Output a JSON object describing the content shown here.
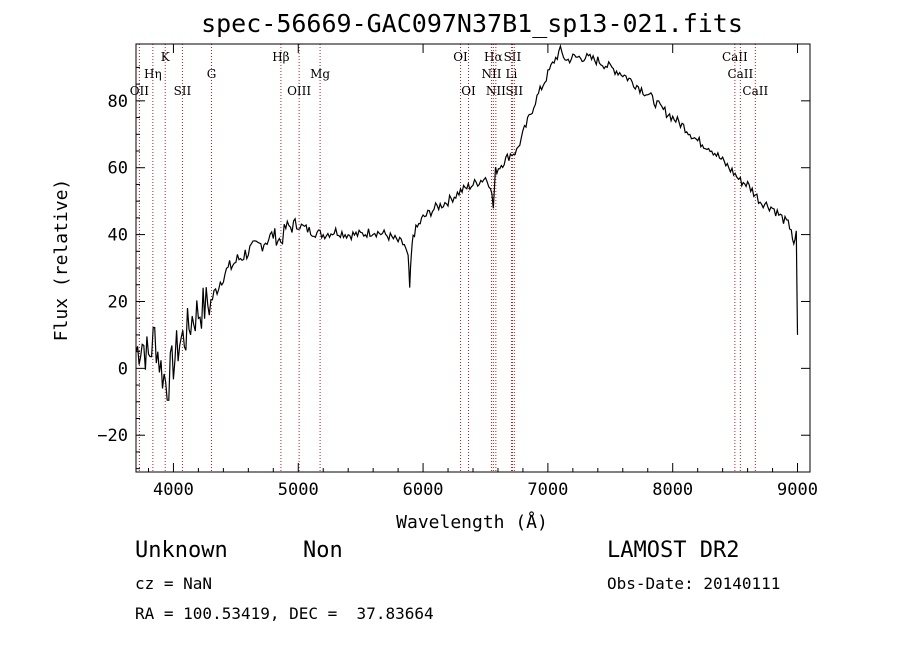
{
  "chart_data": {
    "type": "line",
    "title": "spec-56669-GAC097N37B1_sp13-021.fits",
    "xlabel": "Wavelength (Å)",
    "ylabel": "Flux (relative)",
    "xlim": [
      3700,
      9100
    ],
    "ylim": [
      -31,
      97
    ],
    "xticks": [
      4000,
      5000,
      6000,
      7000,
      8000,
      9000
    ],
    "yticks": [
      -20,
      0,
      20,
      40,
      60,
      80
    ],
    "grid": false,
    "spectrum": {
      "x": [
        3700,
        3750,
        3800,
        3850,
        3900,
        3950,
        4000,
        4050,
        4100,
        4150,
        4200,
        4300,
        4400,
        4500,
        4600,
        4700,
        4800,
        4861,
        4900,
        5000,
        5100,
        5200,
        5300,
        5400,
        5500,
        5600,
        5700,
        5800,
        5850,
        5880,
        5893,
        5905,
        5920,
        6000,
        6100,
        6200,
        6300,
        6400,
        6500,
        6540,
        6563,
        6580,
        6650,
        6700,
        6750,
        6800,
        6900,
        7000,
        7050,
        7100,
        7150,
        7200,
        7300,
        7400,
        7500,
        7600,
        7700,
        7800,
        7900,
        8000,
        8100,
        8200,
        8300,
        8400,
        8500,
        8542,
        8600,
        8662,
        8700,
        8800,
        8900,
        8950,
        8970,
        8990,
        9000
      ],
      "y": [
        5,
        8,
        3,
        10,
        0,
        -5,
        2,
        8,
        10,
        15,
        17,
        20,
        28,
        32,
        35,
        37,
        40,
        38,
        42,
        43,
        41,
        40,
        41,
        40,
        40,
        41,
        40,
        38,
        37,
        33,
        24,
        33,
        40,
        45,
        48,
        50,
        53,
        55,
        57,
        55,
        48,
        59,
        62,
        64,
        65,
        70,
        80,
        88,
        92,
        95,
        92,
        93,
        93,
        92,
        90,
        88,
        85,
        82,
        78,
        75,
        72,
        68,
        66,
        62,
        58,
        56,
        55,
        52,
        50,
        48,
        44,
        42,
        36,
        40,
        10
      ]
    },
    "lines": [
      {
        "label": "OII",
        "x": 3727,
        "row": 3
      },
      {
        "label": "Hη",
        "x": 3835,
        "row": 2
      },
      {
        "label": "K",
        "x": 3934,
        "row": 1
      },
      {
        "label": "SII",
        "x": 4072,
        "row": 3
      },
      {
        "label": "G",
        "x": 4305,
        "row": 2
      },
      {
        "label": "Hβ",
        "x": 4861,
        "row": 1
      },
      {
        "label": "OIII",
        "x": 5007,
        "row": 3
      },
      {
        "label": "Mg",
        "x": 5175,
        "row": 2
      },
      {
        "label": "OI",
        "x": 6300,
        "row": 1
      },
      {
        "label": "OI",
        "x": 6364,
        "row": 3
      },
      {
        "label": "Hα",
        "x": 6563,
        "row": 1
      },
      {
        "label": "NII",
        "x": 6548,
        "row": 2
      },
      {
        "label": "NII",
        "x": 6583,
        "row": 3
      },
      {
        "label": "SII",
        "x": 6716,
        "row": 1
      },
      {
        "label": "Li",
        "x": 6708,
        "row": 2
      },
      {
        "label": "SII",
        "x": 6731,
        "row": 3
      },
      {
        "label": "CaII",
        "x": 8498,
        "row": 1
      },
      {
        "label": "CaII",
        "x": 8542,
        "row": 2
      },
      {
        "label": "CaII",
        "x": 8662,
        "row": 3
      }
    ]
  },
  "info": {
    "object_class": "Unknown",
    "object_subclass": "Non",
    "survey": "LAMOST DR2",
    "cz": "cz = NaN",
    "obs_date": "Obs-Date: 20140111",
    "coords": "RA = 100.53419, DEC =  37.83664"
  }
}
